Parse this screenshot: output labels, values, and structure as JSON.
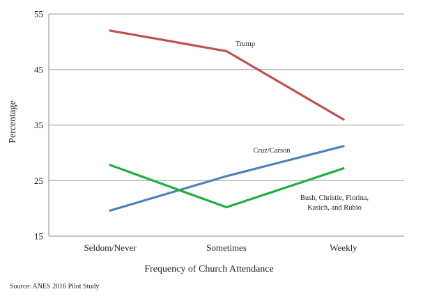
{
  "chart_data": {
    "type": "line",
    "title": "",
    "xlabel": "Frequency of Church Attendance",
    "ylabel": "Percentage",
    "categories": [
      "Seldom/Never",
      "Sometimes",
      "Weekly"
    ],
    "y_ticks": [
      "15",
      "25",
      "35",
      "45",
      "55"
    ],
    "ylim": [
      15,
      55
    ],
    "grid": true,
    "legend": "none",
    "series": [
      {
        "name": "Trump",
        "label_lines": [
          "Trump"
        ],
        "values": [
          52.0,
          48.3,
          36.0
        ],
        "color": "#c0504d"
      },
      {
        "name": "Cruz/Carson",
        "label_lines": [
          "Cruz/Carson"
        ],
        "values": [
          19.6,
          25.8,
          31.2
        ],
        "color": "#4f81bd"
      },
      {
        "name": "Bush, Christie, Fiorina, Kasich, and Rubio",
        "label_lines": [
          "Bush, Christie, Fiorina,",
          "Kasich, and Rubio"
        ],
        "values": [
          27.8,
          20.2,
          27.2
        ],
        "color": "#1fae3f"
      }
    ],
    "source": "Source: ANES 2016 Pilot Study"
  }
}
